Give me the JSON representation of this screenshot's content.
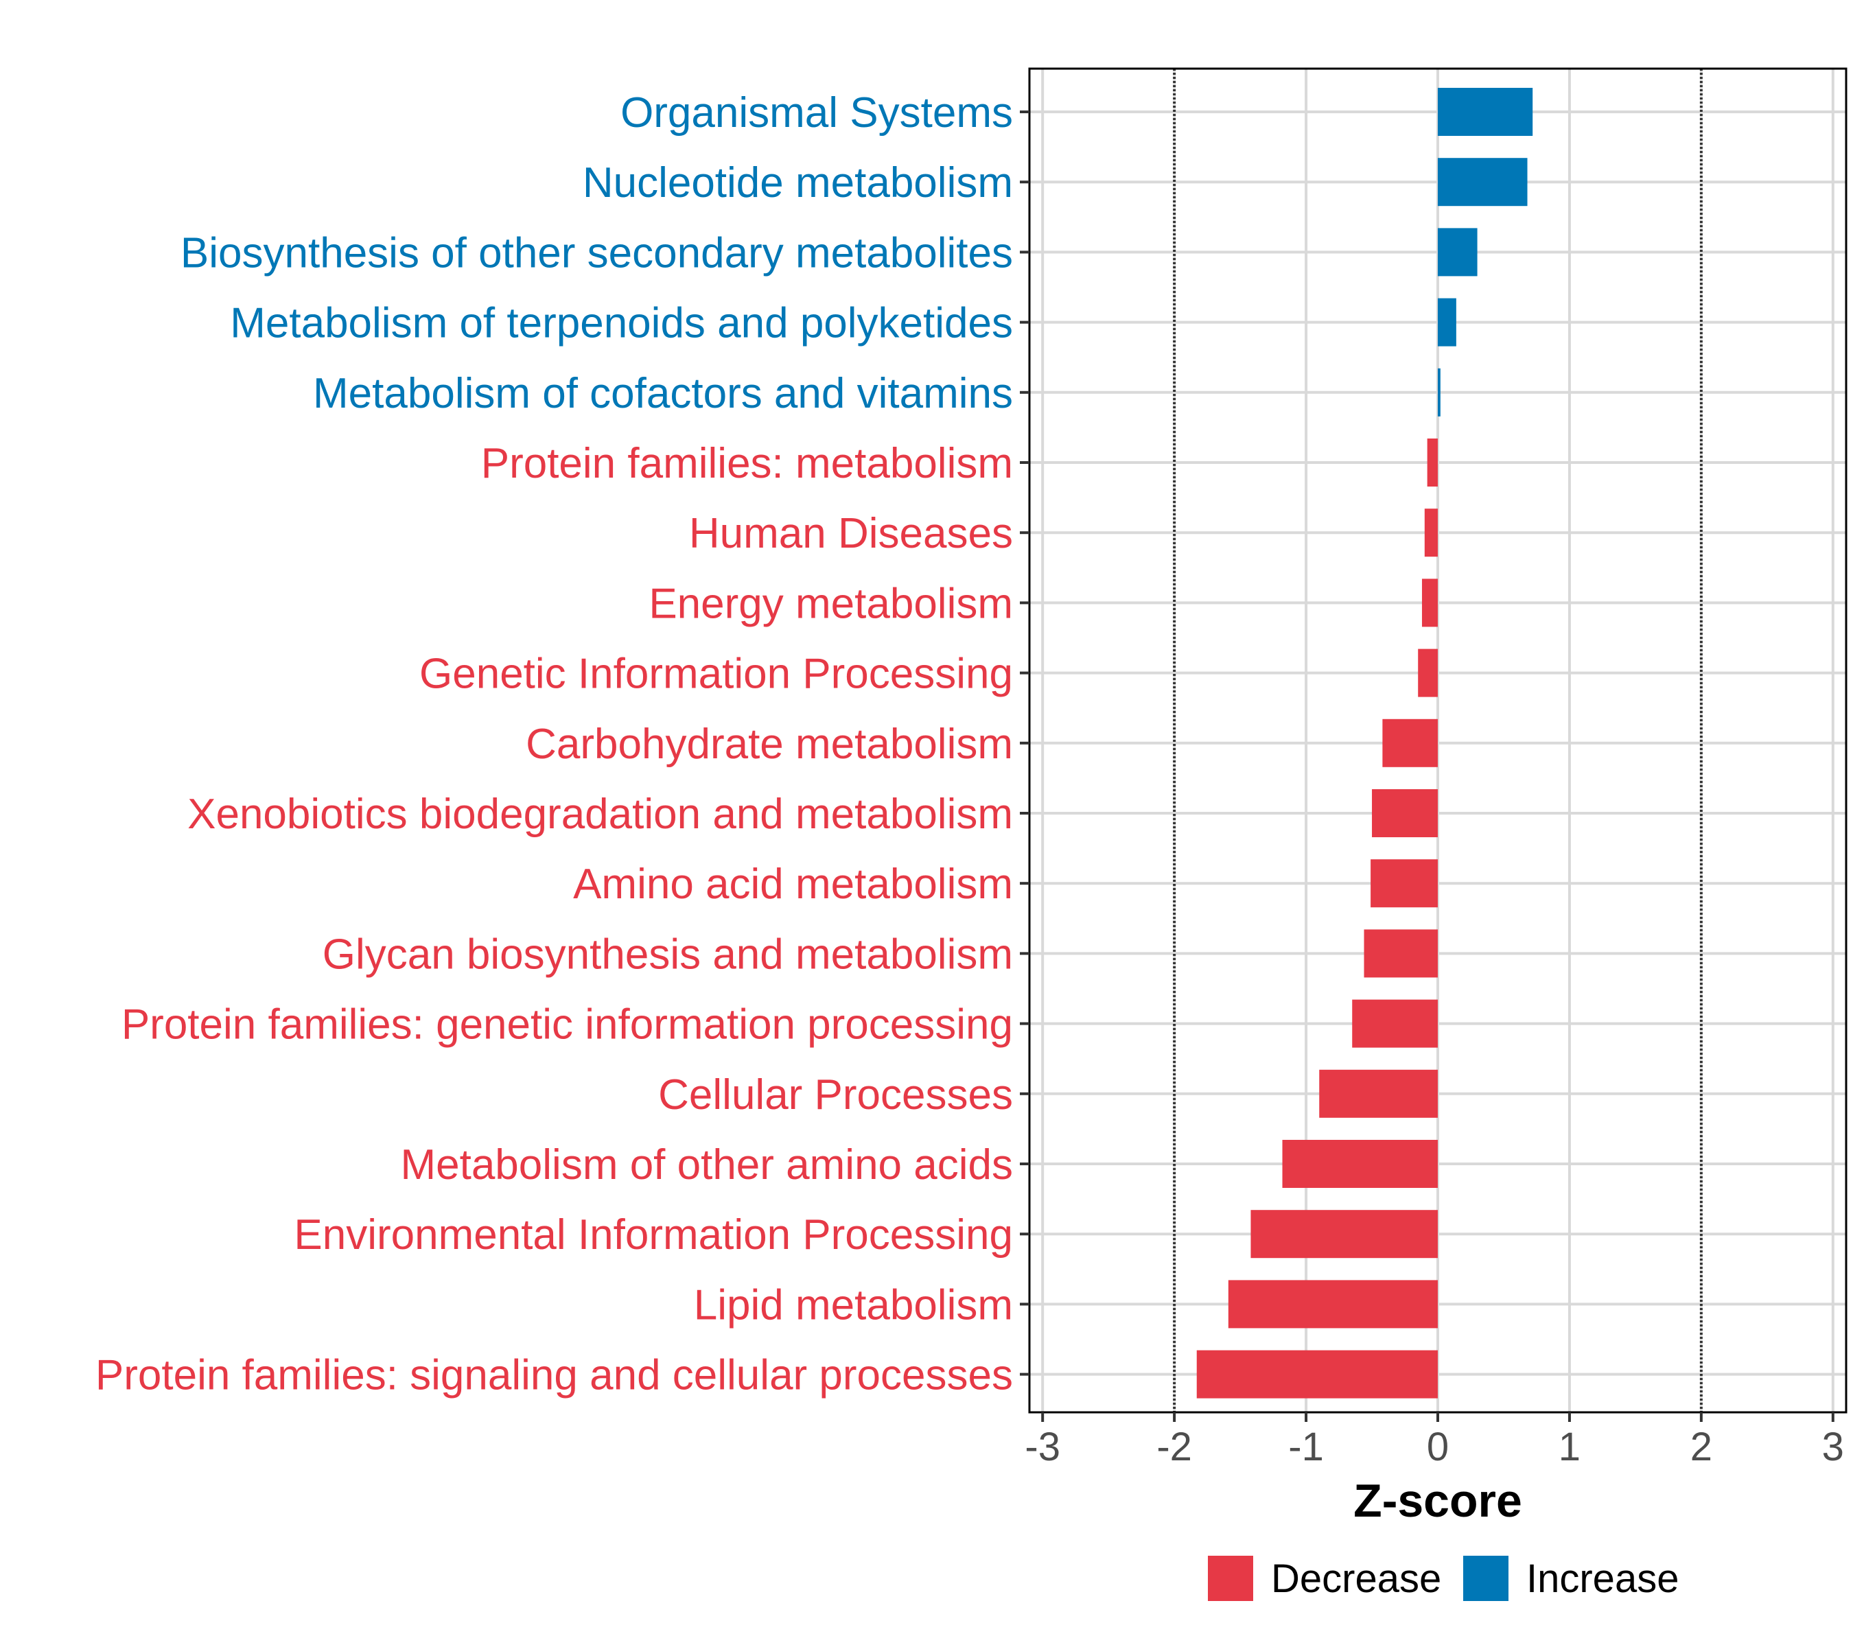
{
  "colors": {
    "decrease": "#E63946",
    "increase": "#0077B6",
    "grid": "#D9D9D9",
    "panel_border": "#000000",
    "ref_line": "#333333"
  },
  "chart_data": {
    "type": "bar",
    "orientation": "horizontal",
    "xlabel": "Z-score",
    "xlim": [
      -3.1,
      3.1
    ],
    "xticks": [
      -3,
      -2,
      -1,
      0,
      1,
      2,
      3
    ],
    "xtick_labels": [
      "-3",
      "-2",
      "-1",
      "0",
      "1",
      "2",
      "3"
    ],
    "reference_lines": [
      -2,
      2
    ],
    "grid": true,
    "categories": [
      "Organismal Systems",
      "Nucleotide metabolism",
      "Biosynthesis of other secondary metabolites",
      "Metabolism of terpenoids and polyketides",
      "Metabolism of cofactors and vitamins",
      "Protein families: metabolism",
      "Human Diseases",
      "Energy metabolism",
      "Genetic Information Processing",
      "Carbohydrate metabolism",
      "Xenobiotics biodegradation and metabolism",
      "Amino acid metabolism",
      "Glycan biosynthesis and metabolism",
      "Protein families: genetic information processing",
      "Cellular Processes",
      "Metabolism of other amino acids",
      "Environmental Information Processing",
      "Lipid metabolism",
      "Protein families: signaling and cellular processes"
    ],
    "values": [
      0.72,
      0.68,
      0.3,
      0.14,
      0.02,
      -0.08,
      -0.1,
      -0.12,
      -0.15,
      -0.42,
      -0.5,
      -0.51,
      -0.56,
      -0.65,
      -0.9,
      -1.18,
      -1.42,
      -1.59,
      -1.83
    ],
    "directions": [
      "Increase",
      "Increase",
      "Increase",
      "Increase",
      "Increase",
      "Decrease",
      "Decrease",
      "Decrease",
      "Decrease",
      "Decrease",
      "Decrease",
      "Decrease",
      "Decrease",
      "Decrease",
      "Decrease",
      "Decrease",
      "Decrease",
      "Decrease",
      "Decrease"
    ],
    "legend": {
      "position": "bottom",
      "items": [
        {
          "label": "Decrease",
          "color": "#E63946"
        },
        {
          "label": "Increase",
          "color": "#0077B6"
        }
      ]
    }
  }
}
